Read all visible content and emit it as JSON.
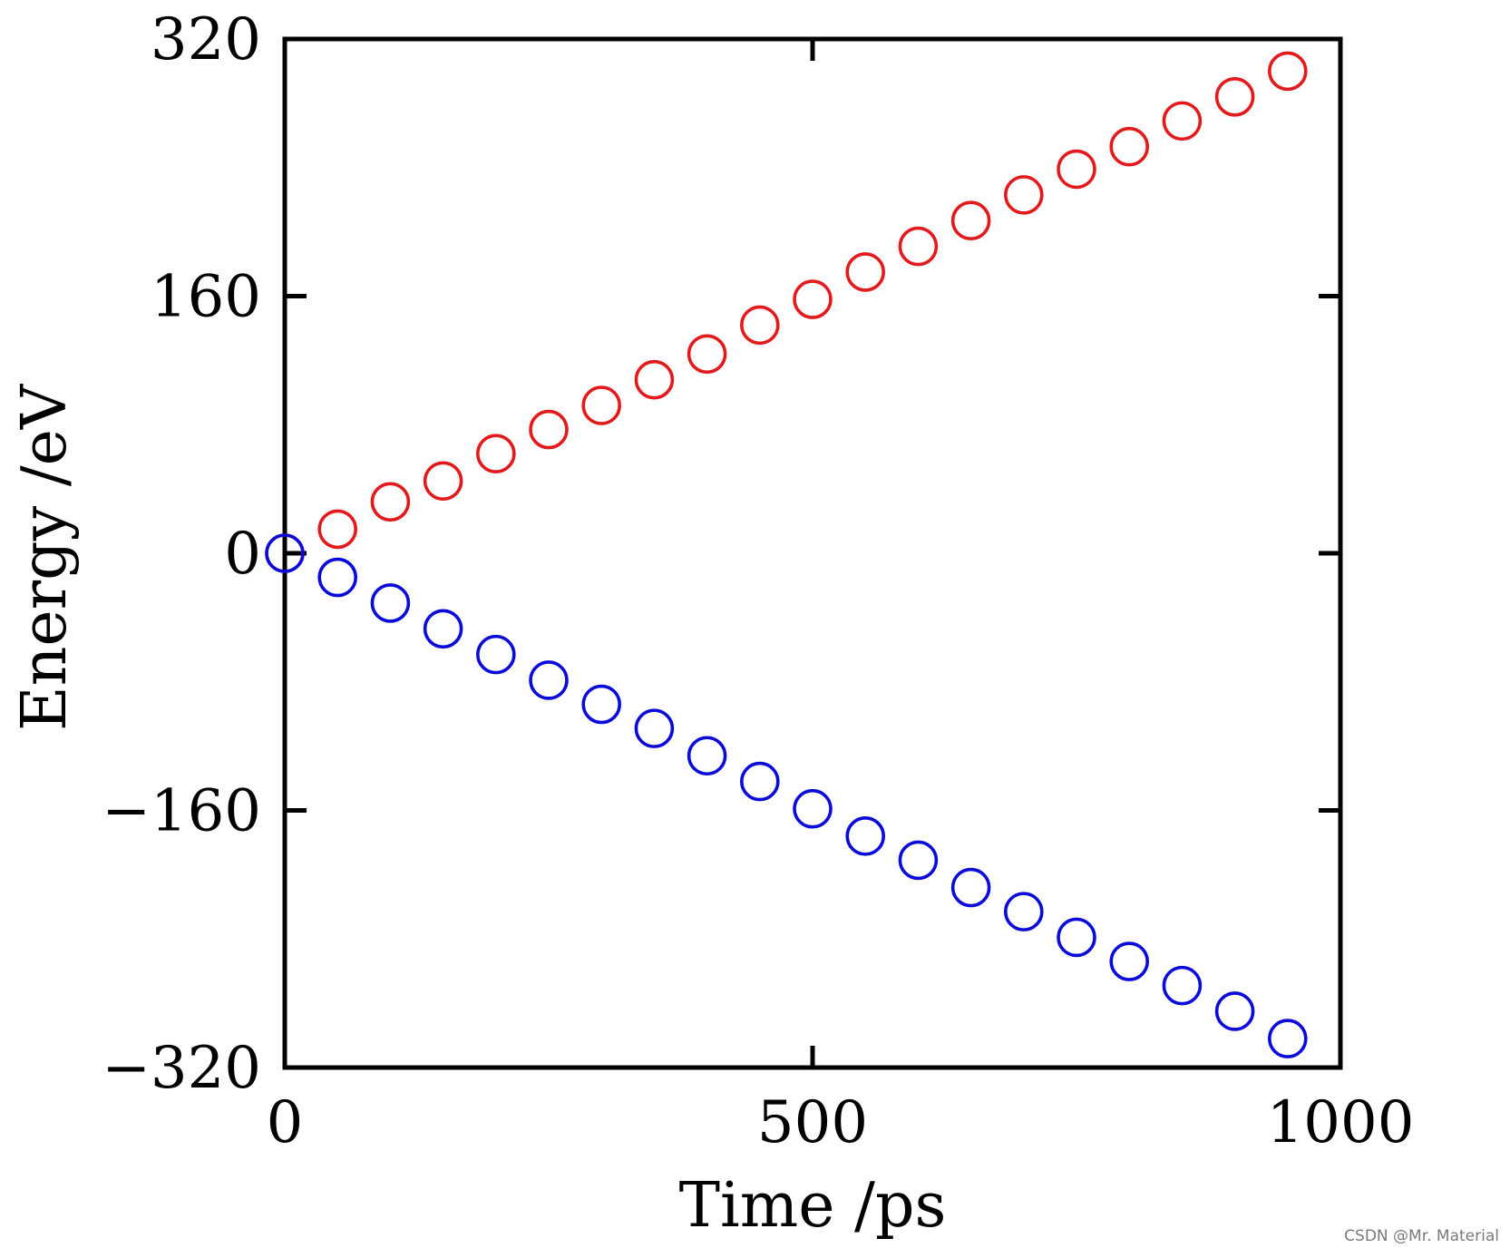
{
  "chart_data": {
    "type": "scatter",
    "title": "",
    "xlabel": "Time /ps",
    "ylabel": "Energy /eV",
    "xlim": [
      0,
      1000
    ],
    "ylim": [
      -320,
      320
    ],
    "xticks": [
      {
        "value": 0,
        "label": "0"
      },
      {
        "value": 500,
        "label": "500"
      },
      {
        "value": 1000,
        "label": "1000"
      }
    ],
    "yticks": [
      {
        "value": 320,
        "label": "320"
      },
      {
        "value": 160,
        "label": "160"
      },
      {
        "value": 0,
        "label": "0"
      },
      {
        "value": -160,
        "label": "−160"
      },
      {
        "value": -320,
        "label": "−320"
      }
    ],
    "grid": false,
    "marker": "open-circle",
    "series": [
      {
        "color": "#e31a1c",
        "x": [
          0,
          50,
          100,
          150,
          200,
          250,
          300,
          350,
          400,
          450,
          500,
          550,
          600,
          650,
          700,
          750,
          800,
          850,
          900,
          950
        ],
        "y": [
          0,
          15,
          32,
          45,
          62,
          77,
          92,
          108,
          124,
          142,
          158,
          175,
          191,
          207,
          223,
          239,
          253,
          269,
          284,
          300
        ]
      },
      {
        "color": "#0b0bd9",
        "x": [
          0,
          50,
          100,
          150,
          200,
          250,
          300,
          350,
          400,
          450,
          500,
          550,
          600,
          650,
          700,
          750,
          800,
          850,
          900,
          950
        ],
        "y": [
          0,
          -15,
          -31,
          -47,
          -63,
          -79,
          -94,
          -109,
          -126,
          -142,
          -159,
          -176,
          -191,
          -208,
          -223,
          -239,
          -254,
          -269,
          -285,
          -302
        ]
      }
    ]
  },
  "watermark": "CSDN @Mr. Material"
}
